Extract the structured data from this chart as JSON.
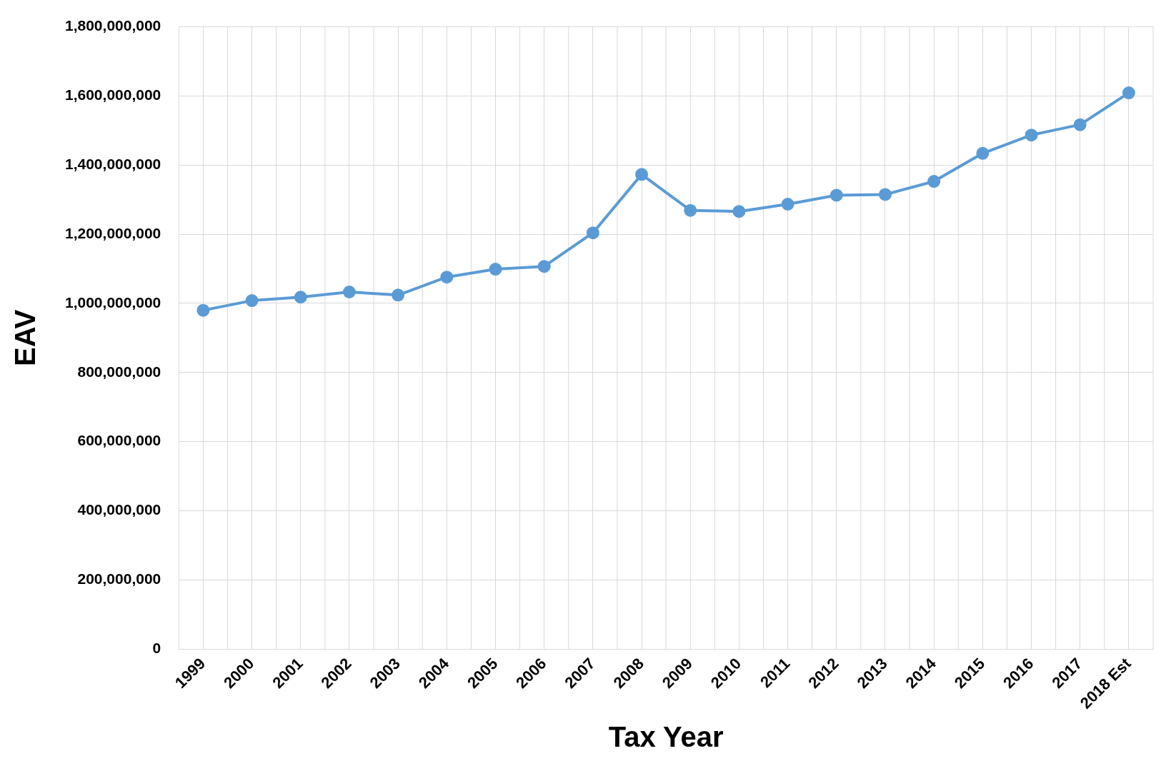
{
  "chart_data": {
    "type": "line",
    "xlabel": "Tax Year",
    "ylabel": "EAV",
    "categories": [
      "1999",
      "2000",
      "2001",
      "2002",
      "2003",
      "2004",
      "2005",
      "2006",
      "2007",
      "2008",
      "2009",
      "2010",
      "2011",
      "2012",
      "2013",
      "2014",
      "2015",
      "2016",
      "2017",
      "2018 Est"
    ],
    "series": [
      {
        "color": "#5b9bd5",
        "values": [
          980000000,
          1008000000,
          1018000000,
          1033000000,
          1024000000,
          1076000000,
          1099000000,
          1107000000,
          1204000000,
          1373000000,
          1269000000,
          1266000000,
          1287000000,
          1313000000,
          1315000000,
          1353000000,
          1434000000,
          1487000000,
          1517000000,
          1609000000
        ]
      }
    ],
    "ylim": [
      0,
      1800000000
    ],
    "yticks": [
      0,
      {
        "value": 200000000,
        "label": "200,000,000"
      },
      {
        "value": 400000000,
        "label": "400,000,000"
      },
      {
        "value": 600000000,
        "label": "600,000,000"
      },
      {
        "value": 800000000,
        "label": "800,000,000"
      },
      {
        "value": 1000000000,
        "label": "1,000,000,000"
      },
      {
        "value": 1200000000,
        "label": "1,200,000,000"
      },
      {
        "value": 1400000000,
        "label": "1,400,000,000"
      },
      {
        "value": 1600000000,
        "label": "1,600,000,000"
      },
      {
        "value": 1800000000,
        "label": "1,800,000,000"
      }
    ],
    "grid": true,
    "legend": false,
    "marker": "circle",
    "line_style": "solid"
  }
}
